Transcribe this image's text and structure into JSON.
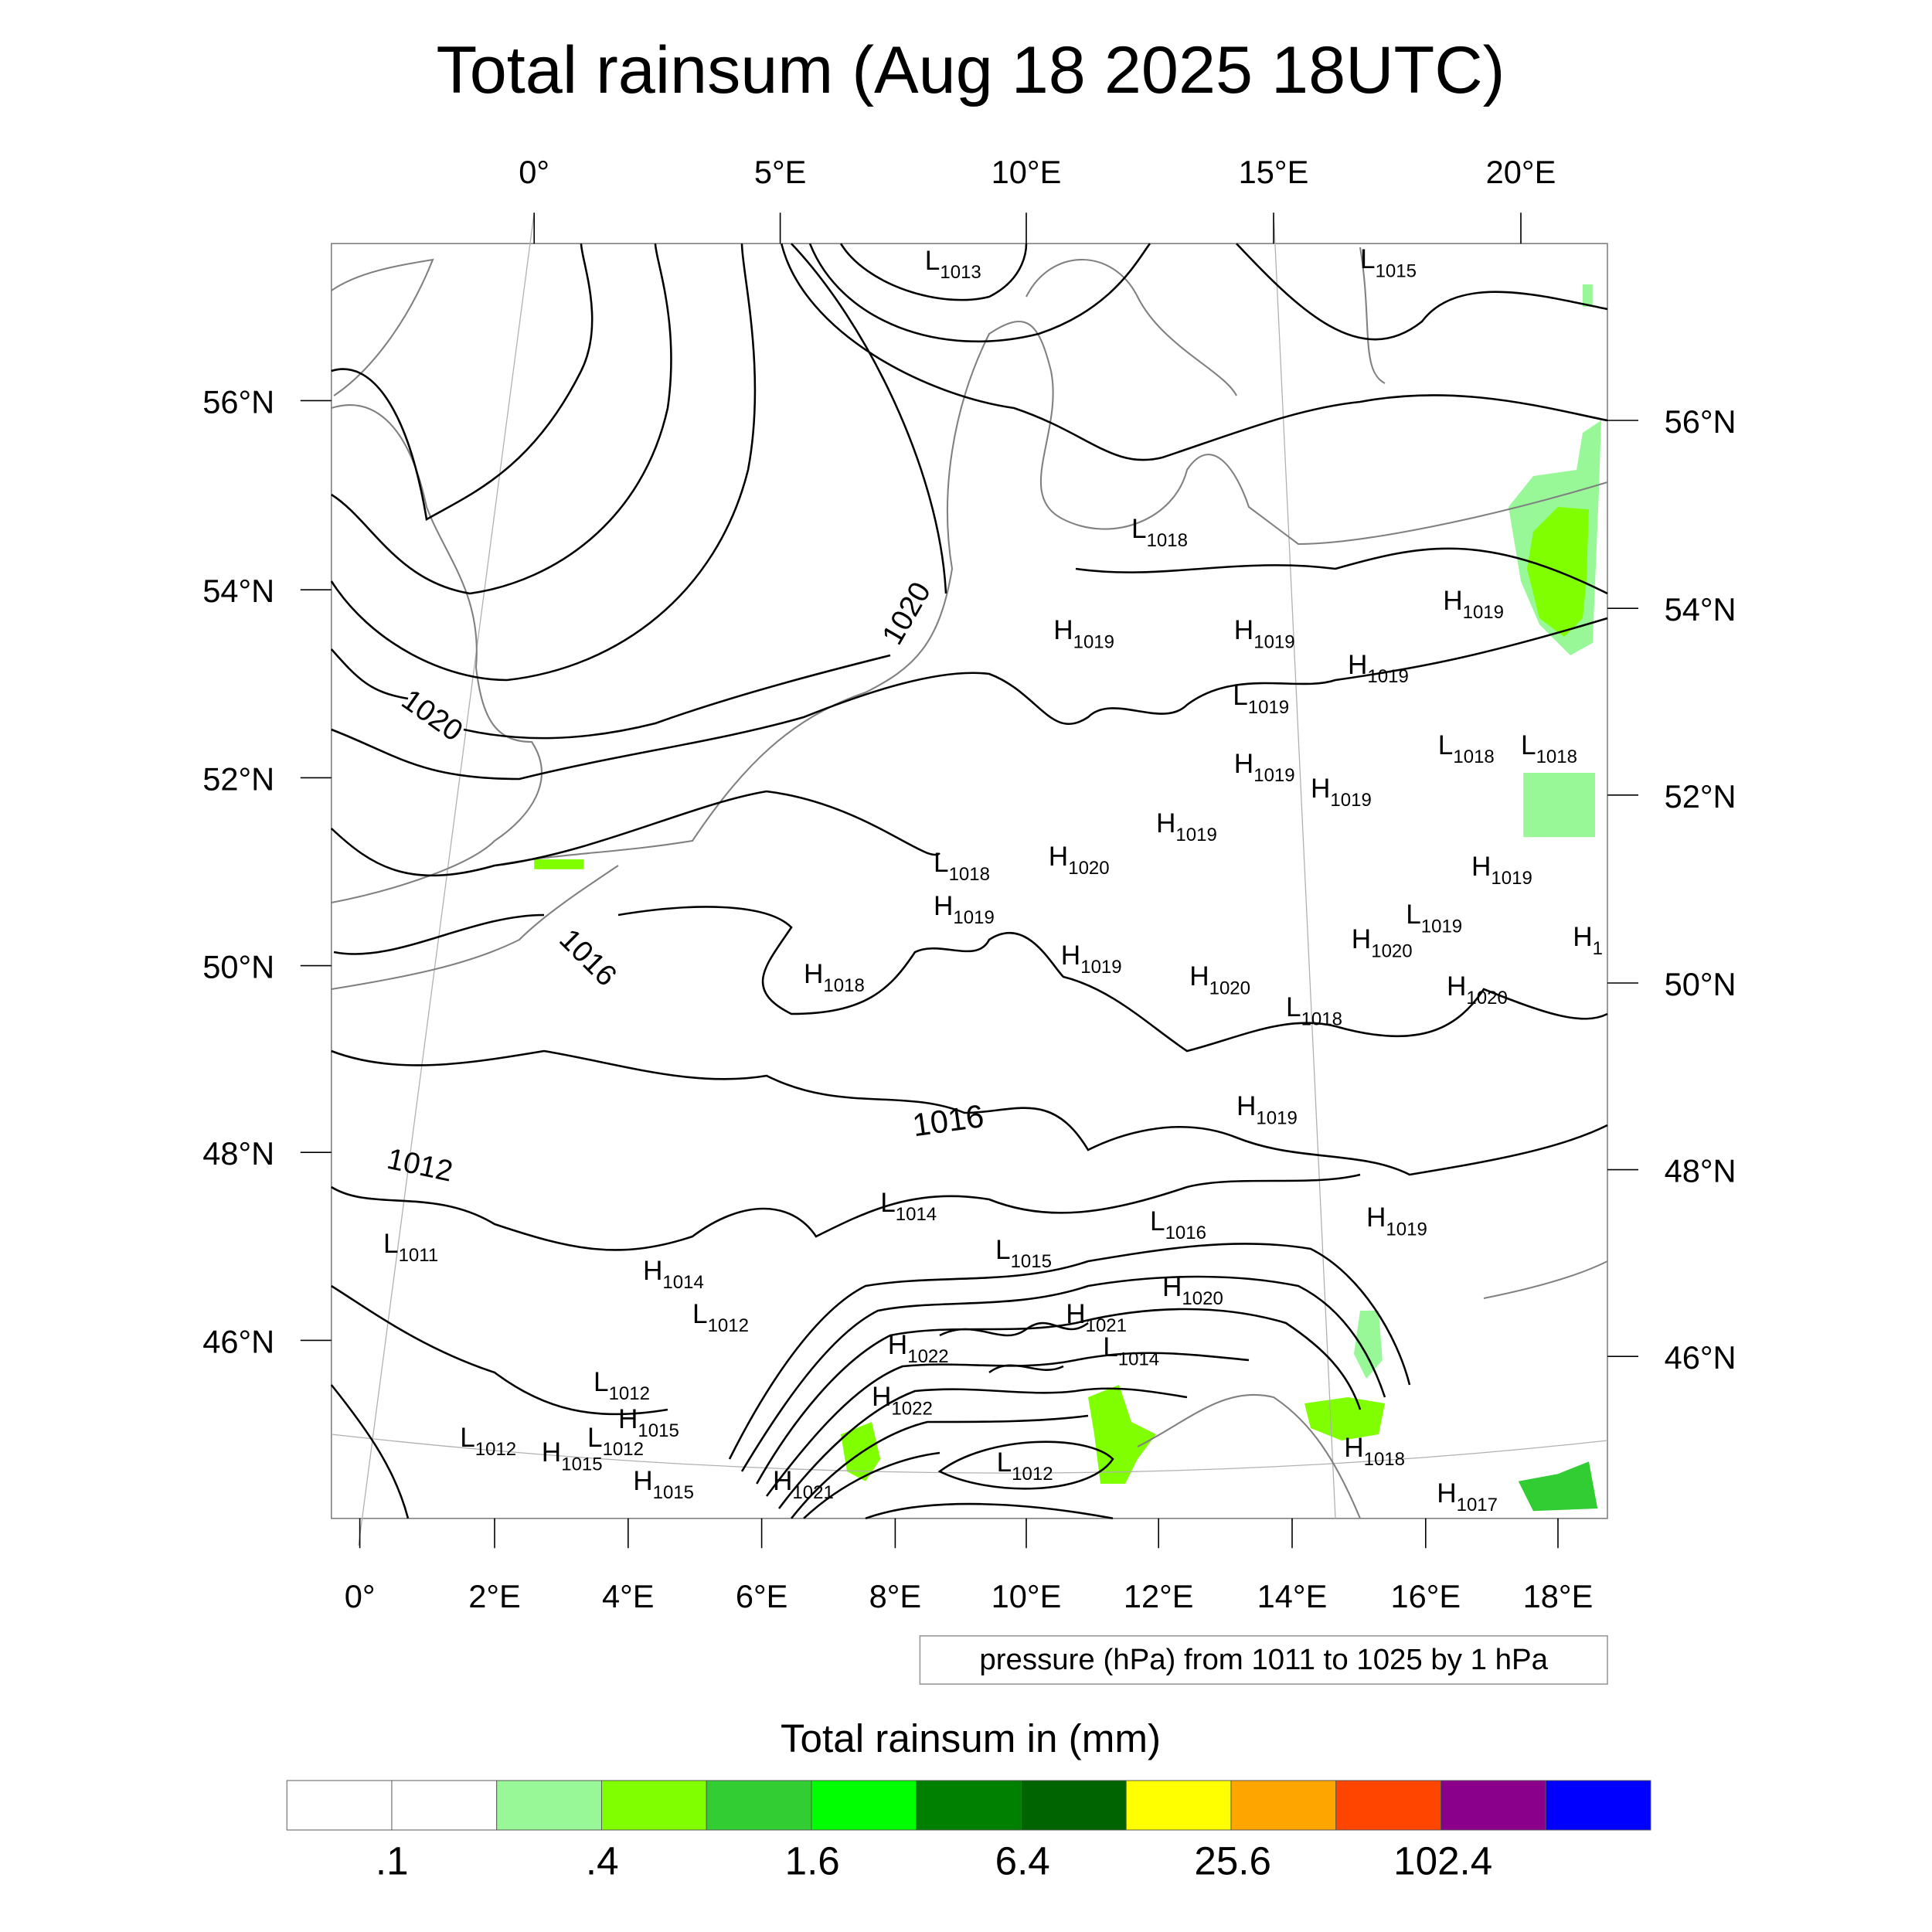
{
  "title": "Total rainsum (Aug 18 2025 18UTC)",
  "top_lon_labels": [
    "0°",
    "5°E",
    "10°E",
    "15°E",
    "20°E"
  ],
  "bottom_lon_labels": [
    "0°",
    "2°E",
    "4°E",
    "6°E",
    "8°E",
    "10°E",
    "12°E",
    "14°E",
    "16°E",
    "18°E"
  ],
  "left_lat_labels": [
    "56°N",
    "54°N",
    "52°N",
    "50°N",
    "48°N",
    "46°N"
  ],
  "right_lat_labels": [
    "56°N",
    "54°N",
    "52°N",
    "50°N",
    "48°N",
    "46°N"
  ],
  "contour_info": "pressure (hPa) from 1011 to 1025 by 1 hPa",
  "contour_labels": [
    "1020",
    "1020",
    "1016",
    "1016",
    "1012"
  ],
  "pressure_centers": [
    {
      "t": "L",
      "v": "1013"
    },
    {
      "t": "L",
      "v": "1015"
    },
    {
      "t": "L",
      "v": "1018"
    },
    {
      "t": "H",
      "v": "1019"
    },
    {
      "t": "H",
      "v": "1019"
    },
    {
      "t": "H",
      "v": "1019"
    },
    {
      "t": "H",
      "v": "1019"
    },
    {
      "t": "L",
      "v": "1019"
    },
    {
      "t": "L",
      "v": "1018"
    },
    {
      "t": "L",
      "v": "1018"
    },
    {
      "t": "H",
      "v": "1019"
    },
    {
      "t": "H",
      "v": "1019"
    },
    {
      "t": "H",
      "v": "1019"
    },
    {
      "t": "L",
      "v": "1018"
    },
    {
      "t": "H",
      "v": "1020"
    },
    {
      "t": "H",
      "v": "1019"
    },
    {
      "t": "H",
      "v": "1018"
    },
    {
      "t": "H",
      "v": "1019"
    },
    {
      "t": "H",
      "v": "1020"
    },
    {
      "t": "L",
      "v": "1019"
    },
    {
      "t": "H",
      "v": "1019"
    },
    {
      "t": "H",
      "v": "1020"
    },
    {
      "t": "H",
      "v": "1020"
    },
    {
      "t": "H",
      "v": "1"
    },
    {
      "t": "L",
      "v": "1018"
    },
    {
      "t": "H",
      "v": "1019"
    },
    {
      "t": "L",
      "v": "1014"
    },
    {
      "t": "L",
      "v": "1016"
    },
    {
      "t": "H",
      "v": "1019"
    },
    {
      "t": "L",
      "v": "1015"
    },
    {
      "t": "H",
      "v": "1020"
    },
    {
      "t": "H",
      "v": "1014"
    },
    {
      "t": "L",
      "v": "1012"
    },
    {
      "t": "H",
      "v": "1021"
    },
    {
      "t": "H",
      "v": "1022"
    },
    {
      "t": "L",
      "v": "1014"
    },
    {
      "t": "H",
      "v": "1022"
    },
    {
      "t": "L",
      "v": "1012"
    },
    {
      "t": "H",
      "v": "1015"
    },
    {
      "t": "L",
      "v": "1012"
    },
    {
      "t": "H",
      "v": "1015"
    },
    {
      "t": "L",
      "v": "1012"
    },
    {
      "t": "H",
      "v": "1015"
    },
    {
      "t": "H",
      "v": "1021"
    },
    {
      "t": "L",
      "v": "1012"
    },
    {
      "t": "H",
      "v": "1018"
    },
    {
      "t": "H",
      "v": "1017"
    },
    {
      "t": "L",
      "v": "1011"
    }
  ],
  "colorbar": {
    "title": "Total rainsum in (mm)",
    "colors": [
      "#ffffff",
      "#ffffff",
      "#98f898",
      "#80ff00",
      "#32cd32",
      "#00ff00",
      "#008000",
      "#006400",
      "#ffff00",
      "#ffa500",
      "#ff4500",
      "#8b008b",
      "#0000ff"
    ],
    "labels": [
      ".1",
      ".4",
      "1.6",
      "6.4",
      "25.6",
      "102.4"
    ]
  }
}
